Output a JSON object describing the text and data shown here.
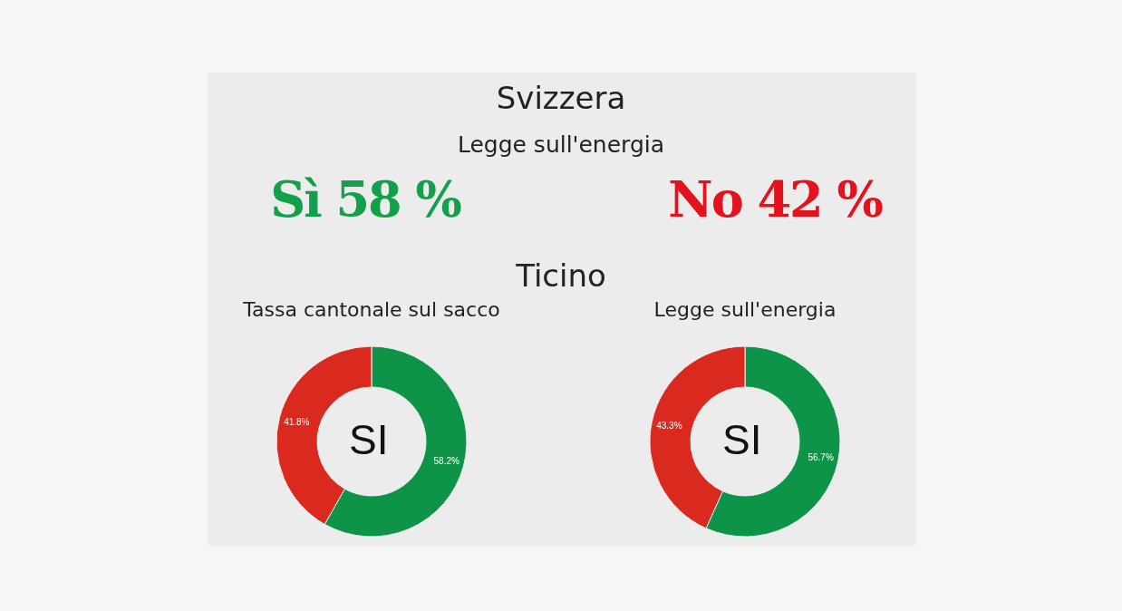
{
  "chart_data": [
    {
      "type": "other",
      "title": "Svizzera",
      "subtitle": "Legge sull'energia",
      "annotations": [
        "Sì 58 %",
        "No 42 %",
        "Ticino"
      ],
      "colors": [
        "#13a04a",
        "#e3121d"
      ]
    },
    {
      "type": "donut",
      "title": "Tassa cantonale sul sacco",
      "categories": [
        null,
        null
      ],
      "values": [
        58.2,
        41.8
      ],
      "colors": [
        "#0d9448",
        "#da2a1f"
      ],
      "value_labels": [
        "58.2%",
        "41.8%"
      ],
      "annotations": [
        "SI"
      ]
    },
    {
      "type": "donut",
      "title": "Legge sull'energia",
      "categories": [
        null,
        null
      ],
      "values": [
        56.7,
        43.3
      ],
      "colors": [
        "#0d9448",
        "#da2a1f"
      ],
      "value_labels": [
        "56.7%",
        "43.3%"
      ],
      "annotations": [
        "SI"
      ]
    }
  ]
}
